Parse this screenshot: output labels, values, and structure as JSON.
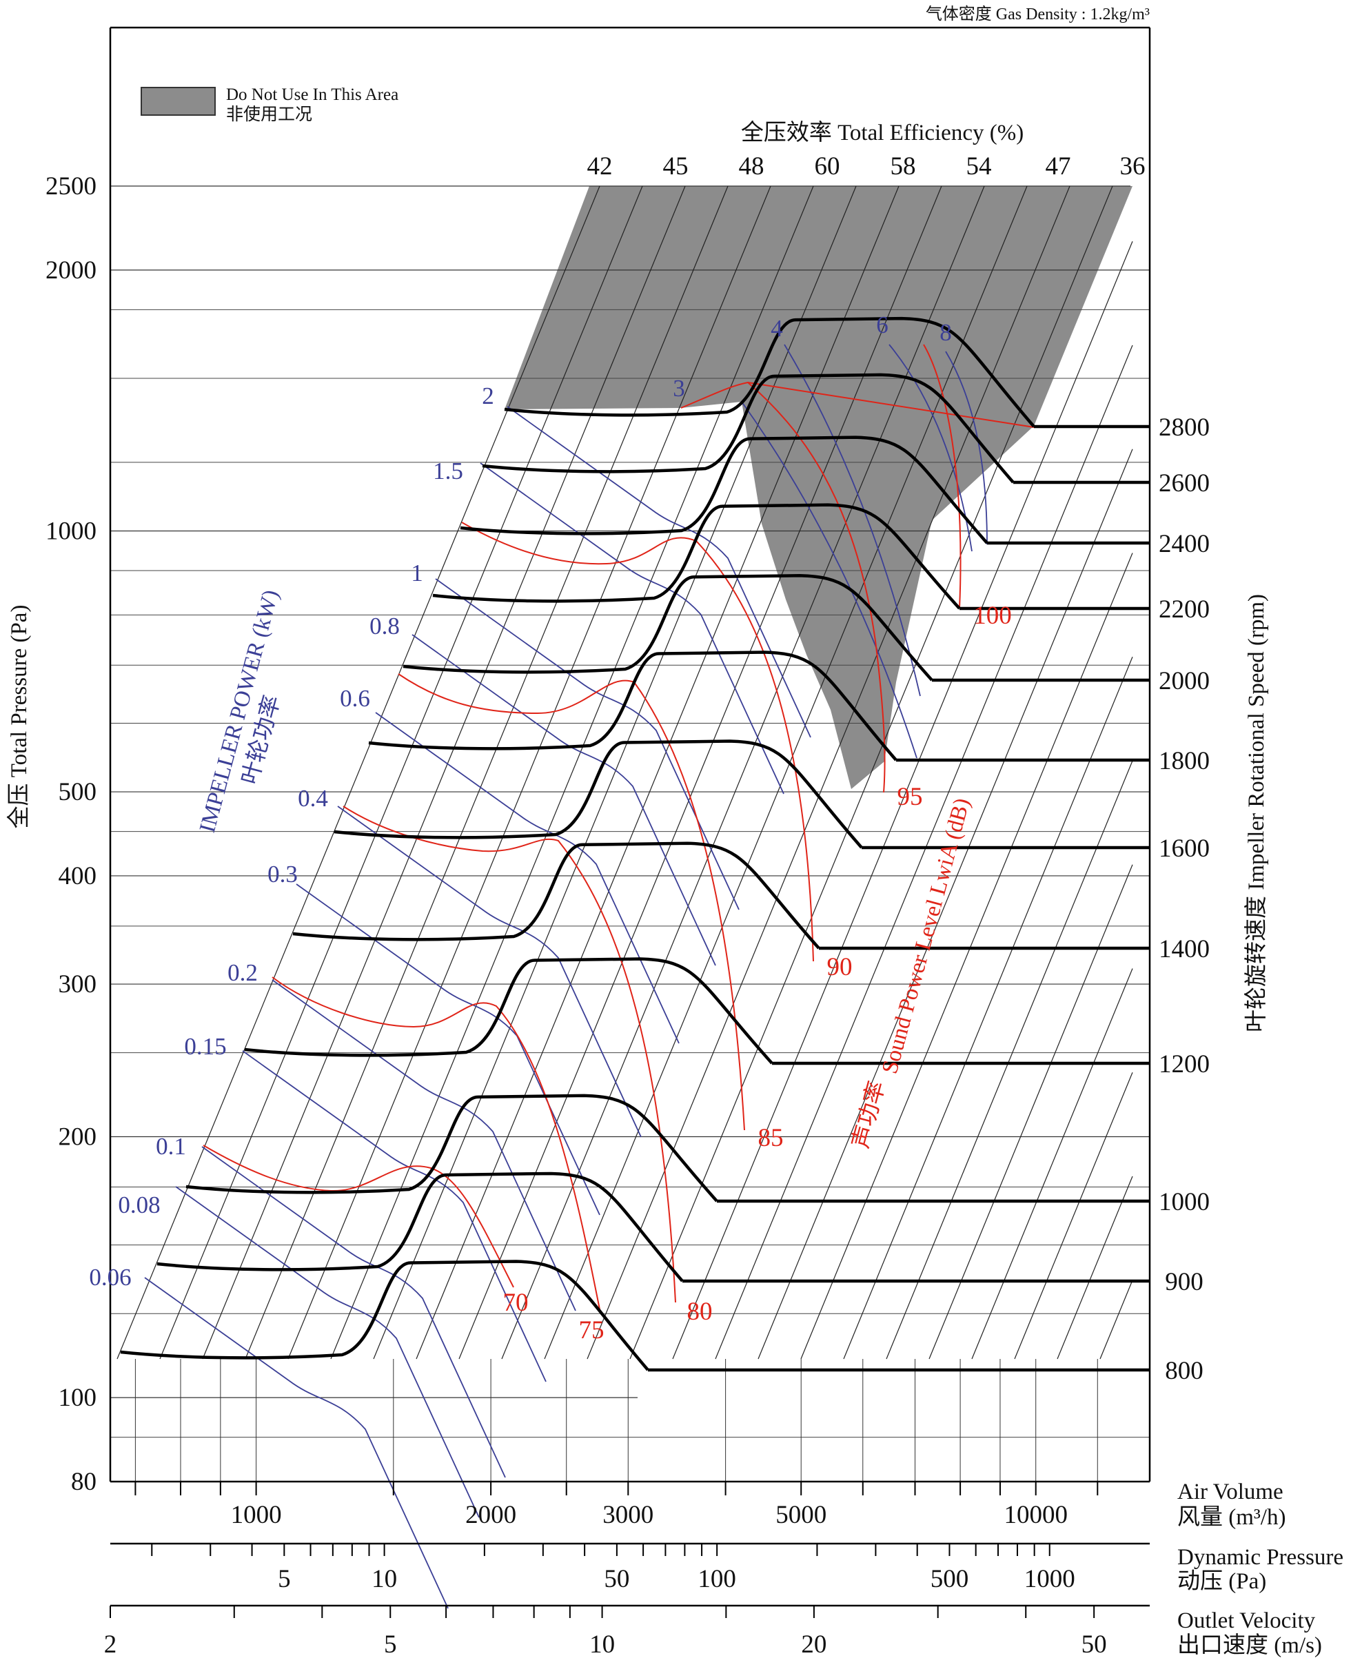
{
  "chart_data": {
    "type": "line",
    "top_note": "气体密度 Gas Density : 1.2kg/m³",
    "legend": {
      "swatch_color": "#8c8c8c",
      "label_en": "Do Not Use In This Area",
      "label_cn": "非使用工况"
    },
    "y_axis": {
      "label": "全压  Total Pressure (Pa)",
      "scale": "log",
      "range": [
        80,
        2500
      ],
      "ticks": [
        "2500",
        "2000",
        "1000",
        "500",
        "400",
        "300",
        "200",
        "100",
        "80"
      ]
    },
    "x_axes": [
      {
        "label_en": "Air Volume",
        "label_cn": "风量 (m³/h)",
        "scale": "log",
        "ticks": [
          "1000",
          "2000",
          "3000",
          "5000",
          "10000"
        ]
      },
      {
        "label_en": "Dynamic Pressure",
        "label_cn": "动压 (Pa)",
        "scale": "log",
        "ticks": [
          "5",
          "10",
          "50",
          "100",
          "500",
          "1000"
        ]
      },
      {
        "label_en": "Outlet Velocity",
        "label_cn": "出口速度 (m/s)",
        "scale": "log",
        "ticks": [
          "2",
          "5",
          "10",
          "20",
          "50"
        ]
      }
    ],
    "right_axis": {
      "label": "叶轮旋转速度 Impeller Rotational Speed (rpm)"
    },
    "efficiency": {
      "title": "全压效率 Total Efficiency (%)",
      "values": [
        "42",
        "45",
        "48",
        "60",
        "58",
        "54",
        "47",
        "36"
      ]
    },
    "speed_curves_rpm": [
      "2800",
      "2600",
      "2400",
      "2200",
      "2000",
      "1800",
      "1600",
      "1400",
      "1200",
      "1000",
      "900",
      "800"
    ],
    "power_lines": {
      "title": "IMPELLER POWER (kW)",
      "title_cn": "叶轮功率",
      "values": [
        "2",
        "1.5",
        "1",
        "0.8",
        "0.6",
        "0.4",
        "0.3",
        "0.2",
        "0.15",
        "0.1",
        "0.08",
        "0.06",
        "3",
        "4",
        "6",
        "8"
      ]
    },
    "sound_lines": {
      "title": "Sound Power Level LwiA (dB)",
      "title_cn": "声功率",
      "values": [
        "70",
        "75",
        "80",
        "85",
        "90",
        "95",
        "100"
      ]
    },
    "colors": {
      "curve": "#000000",
      "power": "#3b3f96",
      "sound": "#e02418",
      "shade": "#8c8c8c"
    }
  }
}
